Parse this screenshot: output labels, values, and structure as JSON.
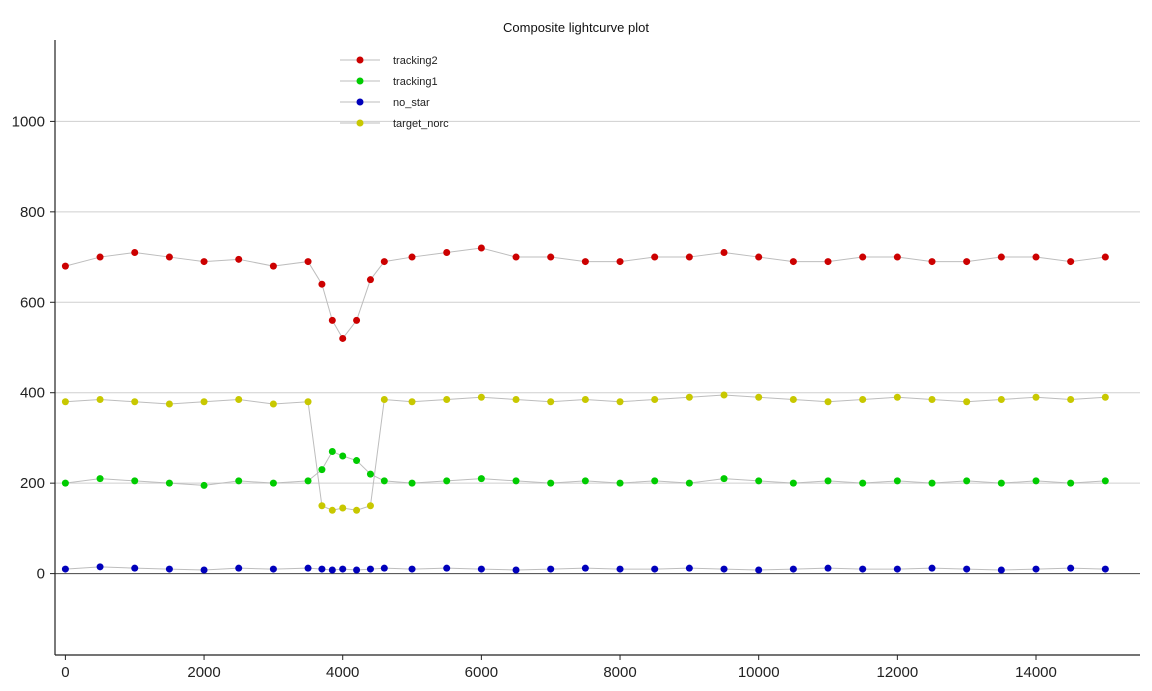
{
  "chart_data": {
    "type": "scatter",
    "title": "Composite lightcurve plot",
    "xlabel": "",
    "ylabel": "",
    "xlim": [
      -150,
      15500
    ],
    "ylim": [
      -180,
      1180
    ],
    "x_ticks": [
      0,
      2000,
      4000,
      6000,
      8000,
      10000,
      12000,
      14000
    ],
    "y_ticks": [
      0,
      200,
      400,
      600,
      800,
      1000
    ],
    "grid": "horizontal",
    "legend_position": "top-left",
    "series": [
      {
        "name": "tracking2",
        "color": "#cc0000",
        "x": [
          0,
          500,
          1000,
          1500,
          2000,
          2500,
          3000,
          3500,
          3700,
          3850,
          4000,
          4200,
          4400,
          4600,
          5000,
          5500,
          6000,
          6500,
          7000,
          7500,
          8000,
          8500,
          9000,
          9500,
          10000,
          10500,
          11000,
          11500,
          12000,
          12500,
          13000,
          13500,
          14000,
          14500,
          15000
        ],
        "values": [
          680,
          700,
          710,
          700,
          690,
          695,
          680,
          690,
          640,
          560,
          520,
          560,
          650,
          690,
          700,
          710,
          720,
          700,
          700,
          690,
          690,
          700,
          700,
          710,
          700,
          690,
          690,
          700,
          700,
          690,
          690,
          700,
          700,
          690,
          700
        ]
      },
      {
        "name": "tracking1",
        "color": "#00cc00",
        "x": [
          0,
          500,
          1000,
          1500,
          2000,
          2500,
          3000,
          3500,
          3700,
          3850,
          4000,
          4200,
          4400,
          4600,
          5000,
          5500,
          6000,
          6500,
          7000,
          7500,
          8000,
          8500,
          9000,
          9500,
          10000,
          10500,
          11000,
          11500,
          12000,
          12500,
          13000,
          13500,
          14000,
          14500,
          15000
        ],
        "values": [
          200,
          210,
          205,
          200,
          195,
          205,
          200,
          205,
          230,
          270,
          260,
          250,
          220,
          205,
          200,
          205,
          210,
          205,
          200,
          205,
          200,
          205,
          200,
          210,
          205,
          200,
          205,
          200,
          205,
          200,
          205,
          200,
          205,
          200,
          205
        ]
      },
      {
        "name": "no_star",
        "color": "#0000bb",
        "x": [
          0,
          500,
          1000,
          1500,
          2000,
          2500,
          3000,
          3500,
          3700,
          3850,
          4000,
          4200,
          4400,
          4600,
          5000,
          5500,
          6000,
          6500,
          7000,
          7500,
          8000,
          8500,
          9000,
          9500,
          10000,
          10500,
          11000,
          11500,
          12000,
          12500,
          13000,
          13500,
          14000,
          14500,
          15000
        ],
        "values": [
          10,
          15,
          12,
          10,
          8,
          12,
          10,
          12,
          10,
          8,
          10,
          8,
          10,
          12,
          10,
          12,
          10,
          8,
          10,
          12,
          10,
          10,
          12,
          10,
          8,
          10,
          12,
          10,
          10,
          12,
          10,
          8,
          10,
          12,
          10
        ]
      },
      {
        "name": "target_norc",
        "color": "#c8c800",
        "x": [
          0,
          500,
          1000,
          1500,
          2000,
          2500,
          3000,
          3500,
          3700,
          3850,
          4000,
          4200,
          4400,
          4600,
          5000,
          5500,
          6000,
          6500,
          7000,
          7500,
          8000,
          8500,
          9000,
          9500,
          10000,
          10500,
          11000,
          11500,
          12000,
          12500,
          13000,
          13500,
          14000,
          14500,
          15000
        ],
        "values": [
          380,
          385,
          380,
          375,
          380,
          385,
          375,
          380,
          150,
          140,
          145,
          140,
          150,
          385,
          380,
          385,
          390,
          385,
          380,
          385,
          380,
          385,
          390,
          395,
          390,
          385,
          380,
          385,
          390,
          385,
          380,
          385,
          390,
          385,
          390
        ]
      }
    ]
  }
}
